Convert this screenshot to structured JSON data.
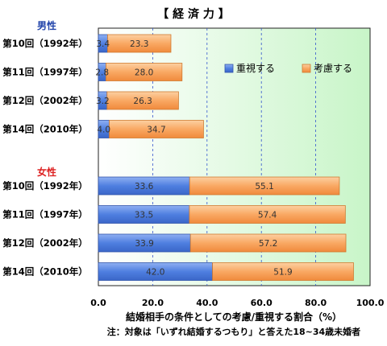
{
  "chart_data": {
    "type": "bar",
    "stacked": true,
    "orientation": "horizontal",
    "title": "【 経 済 力 】",
    "xlabel": "結婚相手の条件としての考慮/重視する割合（%）",
    "note": "注：対象は「いずれ結婚するつもり」と答えた18~34歳未婚者",
    "xlim": [
      0,
      100
    ],
    "x_ticks": [
      "0.0",
      "20.0",
      "40.0",
      "60.0",
      "80.0",
      "100.0"
    ],
    "grid": "vertical-dashed",
    "legend_position": "top-right",
    "groups": [
      {
        "label": "男性",
        "color": "#2244aa",
        "categories": [
          "第10回（1992年）",
          "第11回（1997年）",
          "第12回（2002年）",
          "第14回（2010年）"
        ],
        "series": [
          {
            "name": "重視する",
            "values": [
              3.4,
              2.8,
              3.2,
              4.0
            ]
          },
          {
            "name": "考慮する",
            "values": [
              23.3,
              28.0,
              26.3,
              34.7
            ]
          }
        ]
      },
      {
        "label": "女性",
        "color": "#dd2222",
        "categories": [
          "第10回（1992年）",
          "第11回（1997年）",
          "第12回（2002年）",
          "第14回（2010年）"
        ],
        "series": [
          {
            "name": "重視する",
            "values": [
              33.6,
              33.5,
              33.9,
              42.0
            ]
          },
          {
            "name": "考慮する",
            "values": [
              55.1,
              57.4,
              57.2,
              51.9
            ]
          }
        ]
      }
    ],
    "legend": [
      {
        "name": "重視する",
        "color": "#4f7fe0"
      },
      {
        "name": "考慮する",
        "color": "#f9a863"
      }
    ],
    "colors": {
      "juushi": "#4f7fe0",
      "kouryo": "#f9a863",
      "gradient_start": "#ffffff",
      "gradient_end": "#c8f5c8"
    }
  }
}
